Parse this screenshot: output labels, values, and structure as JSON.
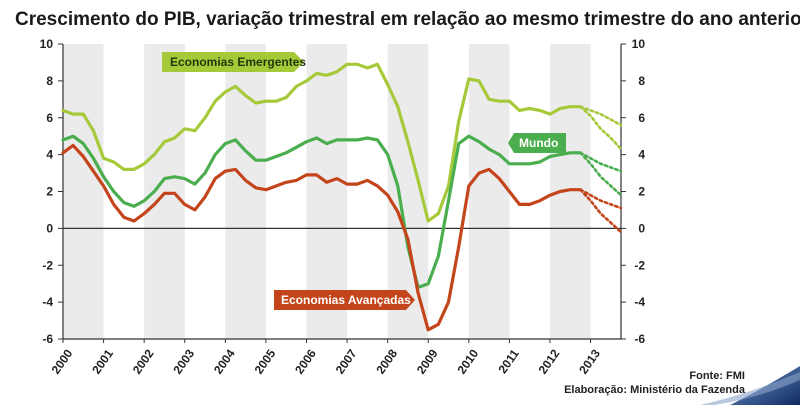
{
  "chart_data": {
    "type": "line",
    "title": "Crescimento do PIB, variação trimestral em relação ao mesmo trimestre do ano anterior",
    "ylim": [
      -6,
      10
    ],
    "yticks": [
      -6,
      -4,
      -2,
      0,
      2,
      4,
      6,
      8,
      10
    ],
    "secondary_y_axis": true,
    "x_start": 2000.0,
    "x_end": 2013.75,
    "years": [
      "2000",
      "2001",
      "2002",
      "2003",
      "2004",
      "2005",
      "2006",
      "2007",
      "2008",
      "2009",
      "2010",
      "2011",
      "2012",
      "2013"
    ],
    "alternating_year_bands": true,
    "colors": {
      "emergentes": "#a6c93a",
      "mundo": "#4aae4f",
      "avancadas": "#c4451c",
      "band": "#ebebeb"
    },
    "series": [
      {
        "key": "emergentes",
        "name": "Economias Emergentes",
        "x": [
          2000.0,
          2000.25,
          2000.5,
          2000.75,
          2001.0,
          2001.25,
          2001.5,
          2001.75,
          2002.0,
          2002.25,
          2002.5,
          2002.75,
          2003.0,
          2003.25,
          2003.5,
          2003.75,
          2004.0,
          2004.25,
          2004.5,
          2004.75,
          2005.0,
          2005.25,
          2005.5,
          2005.75,
          2006.0,
          2006.25,
          2006.5,
          2006.75,
          2007.0,
          2007.25,
          2007.5,
          2007.75,
          2008.0,
          2008.25,
          2008.5,
          2008.75,
          2009.0,
          2009.25,
          2009.5,
          2009.75,
          2010.0,
          2010.25,
          2010.5,
          2010.75,
          2011.0,
          2011.25,
          2011.5,
          2011.75,
          2012.0,
          2012.25,
          2012.5,
          2012.75
        ],
        "values": [
          6.4,
          6.2,
          6.2,
          5.3,
          3.8,
          3.6,
          3.2,
          3.2,
          3.5,
          4.0,
          4.7,
          4.9,
          5.4,
          5.3,
          6.0,
          6.9,
          7.4,
          7.7,
          7.2,
          6.8,
          6.9,
          6.9,
          7.1,
          7.7,
          8.0,
          8.4,
          8.3,
          8.5,
          8.9,
          8.9,
          8.7,
          8.9,
          7.8,
          6.6,
          4.7,
          2.6,
          0.4,
          0.8,
          2.3,
          5.8,
          8.1,
          8.0,
          7.0,
          6.9,
          6.9,
          6.4,
          6.5,
          6.4,
          6.2,
          6.5,
          6.6,
          6.6
        ],
        "projection_x": [
          2012.75,
          2013.0,
          2013.25,
          2013.5,
          2013.75
        ],
        "projection_upper": [
          6.6,
          6.4,
          6.2,
          5.9,
          5.6
        ],
        "projection_lower": [
          6.6,
          6.1,
          5.4,
          4.9,
          4.3
        ]
      },
      {
        "key": "mundo",
        "name": "Mundo",
        "x": [
          2000.0,
          2000.25,
          2000.5,
          2000.75,
          2001.0,
          2001.25,
          2001.5,
          2001.75,
          2002.0,
          2002.25,
          2002.5,
          2002.75,
          2003.0,
          2003.25,
          2003.5,
          2003.75,
          2004.0,
          2004.25,
          2004.5,
          2004.75,
          2005.0,
          2005.25,
          2005.5,
          2005.75,
          2006.0,
          2006.25,
          2006.5,
          2006.75,
          2007.0,
          2007.25,
          2007.5,
          2007.75,
          2008.0,
          2008.25,
          2008.5,
          2008.75,
          2009.0,
          2009.25,
          2009.5,
          2009.75,
          2010.0,
          2010.25,
          2010.5,
          2010.75,
          2011.0,
          2011.25,
          2011.5,
          2011.75,
          2012.0,
          2012.25,
          2012.5,
          2012.75
        ],
        "values": [
          4.8,
          5.0,
          4.6,
          3.8,
          2.8,
          2.0,
          1.4,
          1.2,
          1.5,
          2.0,
          2.7,
          2.8,
          2.7,
          2.4,
          3.0,
          4.0,
          4.6,
          4.8,
          4.2,
          3.7,
          3.7,
          3.9,
          4.1,
          4.4,
          4.7,
          4.9,
          4.6,
          4.8,
          4.8,
          4.8,
          4.9,
          4.8,
          4.0,
          2.3,
          -1.0,
          -3.2,
          -3.0,
          -1.5,
          1.5,
          4.6,
          5.0,
          4.7,
          4.3,
          4.0,
          3.5,
          3.5,
          3.5,
          3.6,
          3.9,
          4.0,
          4.1,
          4.1
        ],
        "projection_x": [
          2012.75,
          2013.0,
          2013.25,
          2013.5,
          2013.75
        ],
        "projection_upper": [
          4.1,
          3.8,
          3.5,
          3.3,
          3.1
        ],
        "projection_lower": [
          4.1,
          3.5,
          2.8,
          2.3,
          1.8
        ]
      },
      {
        "key": "avancadas",
        "name": "Economias Avançadas",
        "x": [
          2000.0,
          2000.25,
          2000.5,
          2000.75,
          2001.0,
          2001.25,
          2001.5,
          2001.75,
          2002.0,
          2002.25,
          2002.5,
          2002.75,
          2003.0,
          2003.25,
          2003.5,
          2003.75,
          2004.0,
          2004.25,
          2004.5,
          2004.75,
          2005.0,
          2005.25,
          2005.5,
          2005.75,
          2006.0,
          2006.25,
          2006.5,
          2006.75,
          2007.0,
          2007.25,
          2007.5,
          2007.75,
          2008.0,
          2008.25,
          2008.5,
          2008.75,
          2009.0,
          2009.25,
          2009.5,
          2009.75,
          2010.0,
          2010.25,
          2010.5,
          2010.75,
          2011.0,
          2011.25,
          2011.5,
          2011.75,
          2012.0,
          2012.25,
          2012.5,
          2012.75
        ],
        "values": [
          4.1,
          4.5,
          3.9,
          3.1,
          2.3,
          1.3,
          0.6,
          0.4,
          0.8,
          1.3,
          1.9,
          1.9,
          1.3,
          1.0,
          1.7,
          2.7,
          3.1,
          3.2,
          2.6,
          2.2,
          2.1,
          2.3,
          2.5,
          2.6,
          2.9,
          2.9,
          2.5,
          2.7,
          2.4,
          2.4,
          2.6,
          2.3,
          1.8,
          0.9,
          -0.6,
          -3.5,
          -5.5,
          -5.2,
          -4.0,
          -1.0,
          2.3,
          3.0,
          3.2,
          2.7,
          2.0,
          1.3,
          1.3,
          1.5,
          1.8,
          2.0,
          2.1,
          2.1
        ],
        "projection_x": [
          2012.75,
          2013.0,
          2013.25,
          2013.5,
          2013.75
        ],
        "projection_upper": [
          2.1,
          1.8,
          1.5,
          1.3,
          1.1
        ],
        "projection_lower": [
          2.1,
          1.5,
          0.8,
          0.3,
          -0.2
        ]
      }
    ],
    "callouts": [
      {
        "series": "emergentes",
        "text": "Economias Emergentes"
      },
      {
        "series": "mundo",
        "text": "Mundo"
      },
      {
        "series": "avancadas",
        "text": "Economias Avançadas"
      }
    ]
  },
  "footer": {
    "source": "Fonte: FMI",
    "elaboration": "Elaboração: Ministério da Fazenda"
  }
}
